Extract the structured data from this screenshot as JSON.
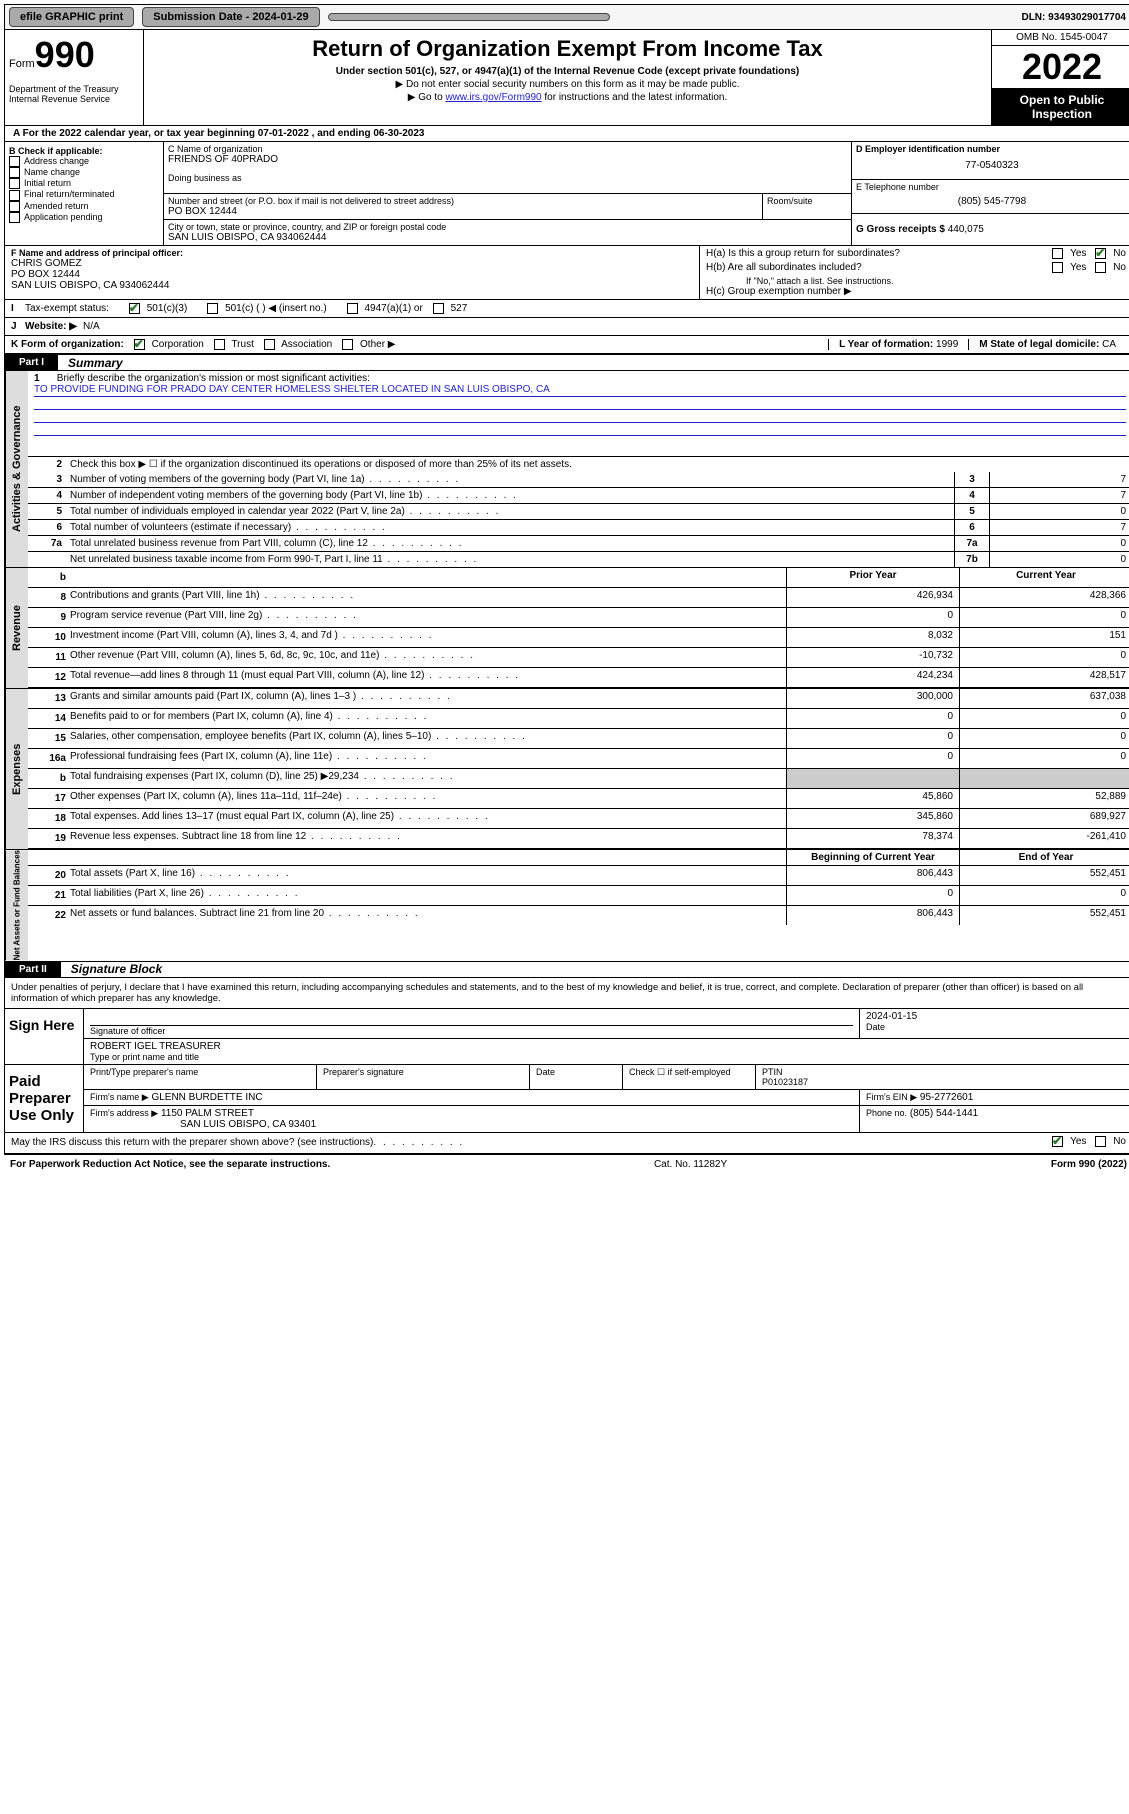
{
  "topbar": {
    "efile": "efile GRAPHIC print",
    "sub_lbl": "Submission Date - 2024-01-29",
    "dln": "DLN: 93493029017704"
  },
  "header": {
    "form_word": "Form",
    "form_num": "990",
    "dept": "Department of the Treasury Internal Revenue Service",
    "title": "Return of Organization Exempt From Income Tax",
    "sub": "Under section 501(c), 527, or 4947(a)(1) of the Internal Revenue Code (except private foundations)",
    "note1": "▶ Do not enter social security numbers on this form as it may be made public.",
    "note2_pre": "▶ Go to ",
    "note2_link": "www.irs.gov/Form990",
    "note2_post": " for instructions and the latest information.",
    "omb": "OMB No. 1545-0047",
    "year": "2022",
    "opi": "Open to Public Inspection"
  },
  "period": "For the 2022 calendar year, or tax year beginning 07-01-2022    , and ending 06-30-2023",
  "boxb": {
    "lbl": "B Check if applicable:",
    "items": [
      "Address change",
      "Name change",
      "Initial return",
      "Final return/terminated",
      "Amended return",
      "Application pending"
    ]
  },
  "boxc": {
    "lbl": "C Name of organization",
    "name": "FRIENDS OF 40PRADO",
    "dba_lbl": "Doing business as",
    "addr_lbl": "Number and street (or P.O. box if mail is not delivered to street address)",
    "suite_lbl": "Room/suite",
    "addr": "PO BOX 12444",
    "city_lbl": "City or town, state or province, country, and ZIP or foreign postal code",
    "city": "SAN LUIS OBISPO, CA  934062444"
  },
  "boxd": {
    "lbl": "D Employer identification number",
    "val": "77-0540323"
  },
  "boxe": {
    "lbl": "E Telephone number",
    "val": "(805) 545-7798"
  },
  "boxg": {
    "lbl": "G Gross receipts $",
    "val": "440,075"
  },
  "boxf": {
    "lbl": "F Name and address of principal officer:",
    "name": "CHRIS GOMEZ",
    "addr1": "PO BOX 12444",
    "addr2": "SAN LUIS OBISPO, CA  934062444"
  },
  "boxh": {
    "a": "H(a)  Is this a group return for subordinates?",
    "b": "H(b)  Are all subordinates included?",
    "note": "If \"No,\" attach a list. See instructions.",
    "c": "H(c)  Group exemption number ▶"
  },
  "boxi": {
    "lbl": "Tax-exempt status:",
    "o1": "501(c)(3)",
    "o2": "501(c) (   ) ◀ (insert no.)",
    "o3": "4947(a)(1) or",
    "o4": "527"
  },
  "boxj": {
    "lbl": "Website: ▶",
    "val": "N/A"
  },
  "boxk": {
    "lbl": "K Form of organization:",
    "o1": "Corporation",
    "o2": "Trust",
    "o3": "Association",
    "o4": "Other ▶"
  },
  "boxl": {
    "lbl": "L Year of formation:",
    "val": "1999"
  },
  "boxm": {
    "lbl": "M State of legal domicile:",
    "val": "CA"
  },
  "part1": {
    "tag": "Part I",
    "title": "Summary"
  },
  "mission": {
    "num": "1",
    "lbl": "Briefly describe the organization's mission or most significant activities:",
    "text": "TO PROVIDE FUNDING FOR PRADO DAY CENTER HOMELESS SHELTER LOCATED IN SAN LUIS OBISPO, CA"
  },
  "line2": "Check this box ▶ ☐  if the organization discontinued its operations or disposed of more than 25% of its net assets.",
  "gov_lines": [
    {
      "n": "3",
      "d": "Number of voting members of the governing body (Part VI, line 1a)",
      "b": "3",
      "v": "7"
    },
    {
      "n": "4",
      "d": "Number of independent voting members of the governing body (Part VI, line 1b)",
      "b": "4",
      "v": "7"
    },
    {
      "n": "5",
      "d": "Total number of individuals employed in calendar year 2022 (Part V, line 2a)",
      "b": "5",
      "v": "0"
    },
    {
      "n": "6",
      "d": "Total number of volunteers (estimate if necessary)",
      "b": "6",
      "v": "7"
    },
    {
      "n": "7a",
      "d": "Total unrelated business revenue from Part VIII, column (C), line 12",
      "b": "7a",
      "v": "0"
    },
    {
      "n": "",
      "d": "Net unrelated business taxable income from Form 990-T, Part I, line 11",
      "b": "7b",
      "v": "0"
    }
  ],
  "col_hdr": {
    "c1": "Prior Year",
    "c2": "Current Year"
  },
  "rev_lines": [
    {
      "n": "8",
      "d": "Contributions and grants (Part VIII, line 1h)",
      "c1": "426,934",
      "c2": "428,366"
    },
    {
      "n": "9",
      "d": "Program service revenue (Part VIII, line 2g)",
      "c1": "0",
      "c2": "0"
    },
    {
      "n": "10",
      "d": "Investment income (Part VIII, column (A), lines 3, 4, and 7d )",
      "c1": "8,032",
      "c2": "151"
    },
    {
      "n": "11",
      "d": "Other revenue (Part VIII, column (A), lines 5, 6d, 8c, 9c, 10c, and 11e)",
      "c1": "-10,732",
      "c2": "0"
    },
    {
      "n": "12",
      "d": "Total revenue—add lines 8 through 11 (must equal Part VIII, column (A), line 12)",
      "c1": "424,234",
      "c2": "428,517"
    }
  ],
  "exp_lines": [
    {
      "n": "13",
      "d": "Grants and similar amounts paid (Part IX, column (A), lines 1–3 )",
      "c1": "300,000",
      "c2": "637,038"
    },
    {
      "n": "14",
      "d": "Benefits paid to or for members (Part IX, column (A), line 4)",
      "c1": "0",
      "c2": "0"
    },
    {
      "n": "15",
      "d": "Salaries, other compensation, employee benefits (Part IX, column (A), lines 5–10)",
      "c1": "0",
      "c2": "0"
    },
    {
      "n": "16a",
      "d": "Professional fundraising fees (Part IX, column (A), line 11e)",
      "c1": "0",
      "c2": "0"
    },
    {
      "n": "b",
      "d": "Total fundraising expenses (Part IX, column (D), line 25) ▶29,234",
      "c1": "shade",
      "c2": "shade"
    },
    {
      "n": "17",
      "d": "Other expenses (Part IX, column (A), lines 11a–11d, 11f–24e)",
      "c1": "45,860",
      "c2": "52,889"
    },
    {
      "n": "18",
      "d": "Total expenses. Add lines 13–17 (must equal Part IX, column (A), line 25)",
      "c1": "345,860",
      "c2": "689,927"
    },
    {
      "n": "19",
      "d": "Revenue less expenses. Subtract line 18 from line 12",
      "c1": "78,374",
      "c2": "-261,410"
    }
  ],
  "na_hdr": {
    "c1": "Beginning of Current Year",
    "c2": "End of Year"
  },
  "na_lines": [
    {
      "n": "20",
      "d": "Total assets (Part X, line 16)",
      "c1": "806,443",
      "c2": "552,451"
    },
    {
      "n": "21",
      "d": "Total liabilities (Part X, line 26)",
      "c1": "0",
      "c2": "0"
    },
    {
      "n": "22",
      "d": "Net assets or fund balances. Subtract line 21 from line 20",
      "c1": "806,443",
      "c2": "552,451"
    }
  ],
  "part2": {
    "tag": "Part II",
    "title": "Signature Block"
  },
  "perjury": "Under penalties of perjury, I declare that I have examined this return, including accompanying schedules and statements, and to the best of my knowledge and belief, it is true, correct, and complete. Declaration of preparer (other than officer) is based on all information of which preparer has any knowledge.",
  "sign": {
    "here": "Sign Here",
    "sig_lbl": "Signature of officer",
    "date_lbl": "Date",
    "date": "2024-01-15",
    "name": "ROBERT IGEL TREASURER",
    "name_lbl": "Type or print name and title"
  },
  "prep": {
    "lbl": "Paid Preparer Use Only",
    "h1": "Print/Type preparer's name",
    "h2": "Preparer's signature",
    "h3": "Date",
    "h4_pre": "Check ☐ if self-employed",
    "h5": "PTIN",
    "ptin": "P01023187",
    "firm_lbl": "Firm's name    ▶",
    "firm": "GLENN BURDETTE INC",
    "ein_lbl": "Firm's EIN ▶",
    "ein": "95-2772601",
    "addr_lbl": "Firm's address ▶",
    "addr1": "1150 PALM STREET",
    "addr2": "SAN LUIS OBISPO, CA  93401",
    "phone_lbl": "Phone no.",
    "phone": "(805) 544-1441"
  },
  "discuss": "May the IRS discuss this return with the preparer shown above? (see instructions)",
  "footer": {
    "l": "For Paperwork Reduction Act Notice, see the separate instructions.",
    "m": "Cat. No. 11282Y",
    "r": "Form 990 (2022)"
  },
  "vtabs": {
    "gov": "Activities & Governance",
    "rev": "Revenue",
    "exp": "Expenses",
    "na": "Net Assets or Fund Balances"
  },
  "yes": "Yes",
  "no": "No"
}
